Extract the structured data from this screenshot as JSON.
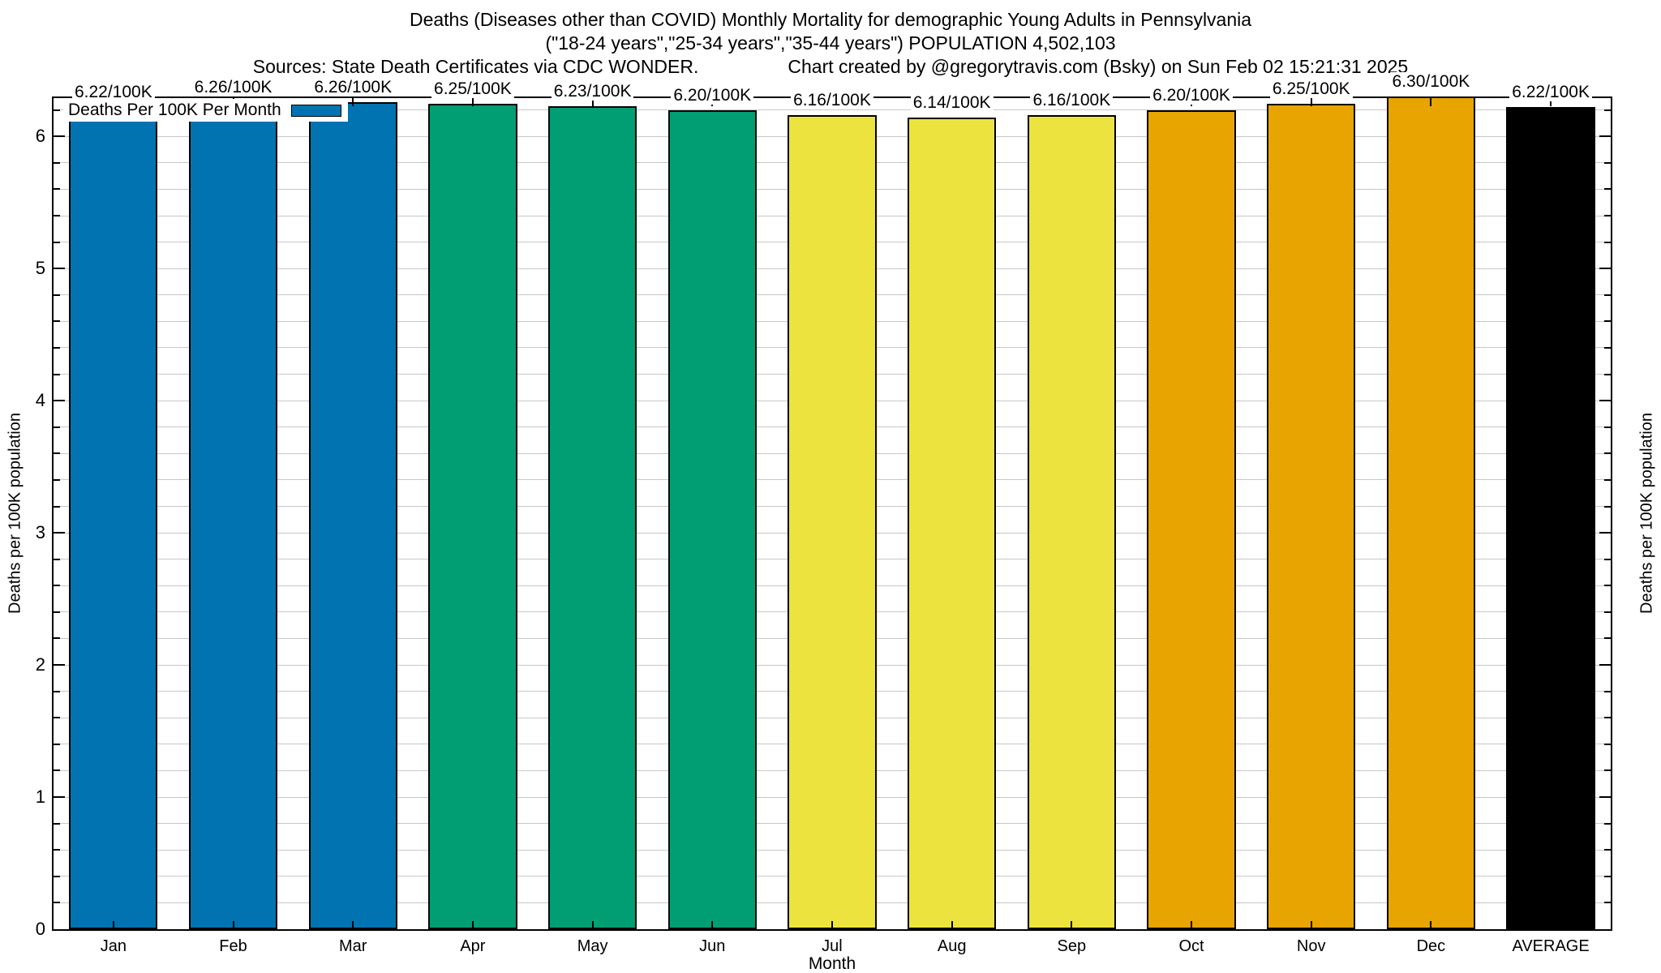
{
  "title": {
    "line1": "Deaths (Diseases other than COVID) Monthly Mortality for demographic Young Adults in Pennsylvania",
    "line2": "(\"18-24 years\",\"25-34 years\",\"35-44 years\") POPULATION 4,502,103",
    "sources": "Sources: State Death Certificates via CDC WONDER.",
    "credit": "Chart created by @gregorytravis.com (Bsky) on Sun Feb 02 15:21:31 2025"
  },
  "legend": {
    "label": "Deaths Per 100K Per Month",
    "swatch_color": "#0273b1"
  },
  "axes": {
    "y_left_label": "Deaths per 100K population",
    "y_right_label": "Deaths per 100K population",
    "x_label": "Month",
    "y_ticks": [
      0,
      1,
      2,
      3,
      4,
      5,
      6
    ]
  },
  "chart_data": {
    "type": "bar",
    "categories": [
      "Jan",
      "Feb",
      "Mar",
      "Apr",
      "May",
      "Jun",
      "Jul",
      "Aug",
      "Sep",
      "Oct",
      "Nov",
      "Dec",
      "AVERAGE"
    ],
    "values": [
      6.22,
      6.26,
      6.26,
      6.25,
      6.23,
      6.2,
      6.16,
      6.14,
      6.16,
      6.2,
      6.25,
      6.3,
      6.22
    ],
    "bar_labels": [
      "6.22/100K",
      "6.26/100K",
      "6.26/100K",
      "6.25/100K",
      "6.23/100K",
      "6.20/100K",
      "6.16/100K",
      "6.14/100K",
      "6.16/100K",
      "6.20/100K",
      "6.25/100K",
      "6.30/100K",
      "6.22/100K"
    ],
    "bar_colors": [
      "#0273b1",
      "#0273b1",
      "#0273b1",
      "#019e73",
      "#019e73",
      "#019e73",
      "#ece33e",
      "#ece33e",
      "#ece33e",
      "#e8a400",
      "#e8a400",
      "#e8a400",
      "#000000"
    ],
    "title": "Deaths (Diseases other than COVID) Monthly Mortality for demographic Young Adults in Pennsylvania",
    "xlabel": "Month",
    "ylabel": "Deaths per 100K population",
    "ylim": [
      0,
      6.29
    ],
    "minor_grid_step": 0.2,
    "grid": true,
    "grid_color": "#c8c8c8",
    "legend_position": "top-left"
  }
}
